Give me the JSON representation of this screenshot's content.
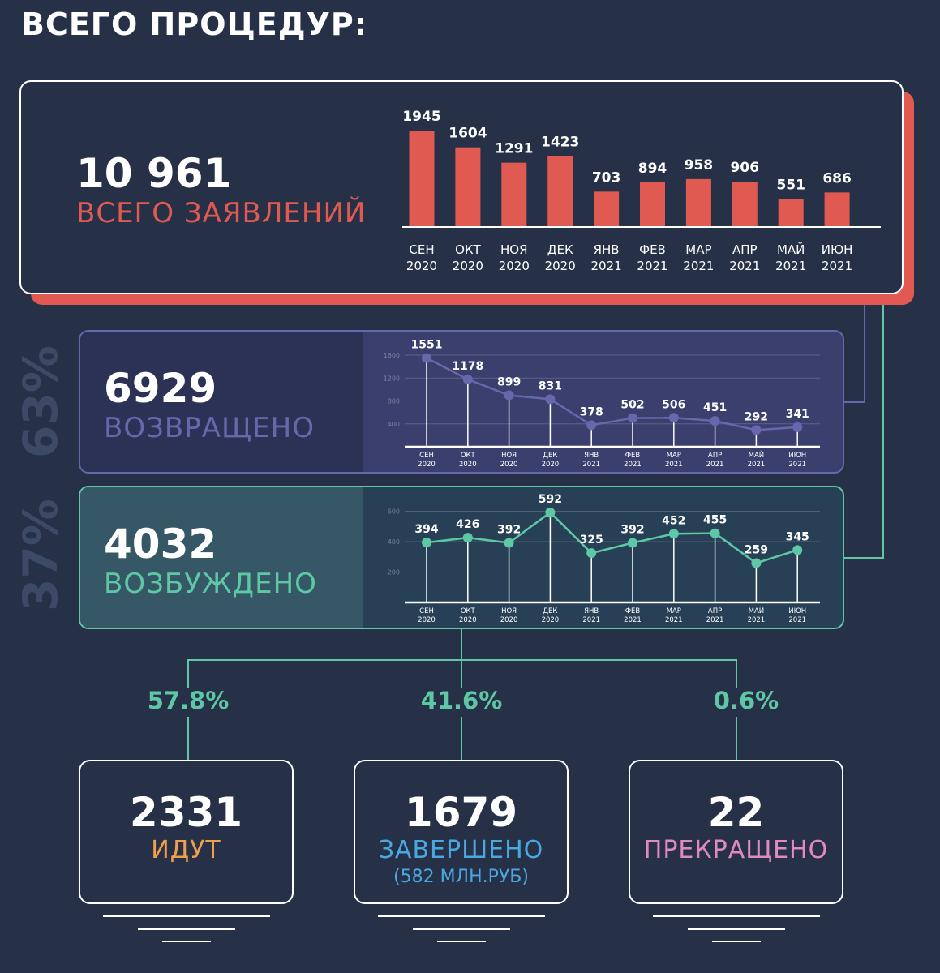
{
  "title": "ВСЕГО ПРОЦЕДУР:",
  "colors": {
    "background": "#263148",
    "red": "#e05a52",
    "purple": "#6867ab",
    "teal": "#5ec8a6",
    "orange": "#f0a04b",
    "blue": "#4aa8e0",
    "pink": "#e08ac0"
  },
  "total": {
    "value": "10 961",
    "label": "ВСЕГО ЗАЯВЛЕНИЙ"
  },
  "returned": {
    "value": "6929",
    "label": "ВОЗВРАЩЕНО",
    "share": "63%"
  },
  "initiated": {
    "value": "4032",
    "label": "ВОЗБУЖДЕНО",
    "share": "37%"
  },
  "outcomes": [
    {
      "pct": "57.8%",
      "value": "2331",
      "label": "ИДУТ",
      "sub": ""
    },
    {
      "pct": "41.6%",
      "value": "1679",
      "label": "ЗАВЕРШЕНО",
      "sub": "(582 МЛН.РУБ)"
    },
    {
      "pct": "0.6%",
      "value": "22",
      "label": "ПРЕКРАЩЕНО",
      "sub": ""
    }
  ],
  "chart_data": [
    {
      "type": "bar",
      "categories": [
        "СЕН 2020",
        "ОКТ 2020",
        "НОЯ 2020",
        "ДЕК 2020",
        "ЯНВ 2021",
        "ФЕВ 2021",
        "МАР 2021",
        "АПР 2021",
        "МАЙ 2021",
        "ИЮН 2021"
      ],
      "values": [
        1945,
        1604,
        1291,
        1423,
        703,
        894,
        958,
        906,
        551,
        686
      ],
      "color": "#e05a52",
      "grid": false
    },
    {
      "type": "line",
      "categories": [
        "СЕН 2020",
        "ОКТ 2020",
        "НОЯ 2020",
        "ДЕК 2020",
        "ЯНВ 2021",
        "ФЕВ 2021",
        "МАР 2021",
        "АПР 2021",
        "МАЙ 2021",
        "ИЮН 2021"
      ],
      "values": [
        1551,
        1178,
        899,
        831,
        378,
        502,
        506,
        451,
        292,
        341
      ],
      "yticks": [
        400,
        800,
        1200,
        1600
      ],
      "ylim": [
        0,
        1700
      ],
      "color": "#6867ab",
      "grid": true
    },
    {
      "type": "line",
      "categories": [
        "СЕН 2020",
        "ОКТ 2020",
        "НОЯ 2020",
        "ДЕК 2020",
        "ЯНВ 2021",
        "ФЕВ 2021",
        "МАР 2021",
        "АПР 2021",
        "МАЙ 2021",
        "ИЮН 2021"
      ],
      "values": [
        394,
        426,
        392,
        592,
        325,
        392,
        452,
        455,
        259,
        345
      ],
      "yticks": [
        200,
        400,
        600
      ],
      "ylim": [
        0,
        640
      ],
      "color": "#5ec8a6",
      "grid": true
    }
  ]
}
